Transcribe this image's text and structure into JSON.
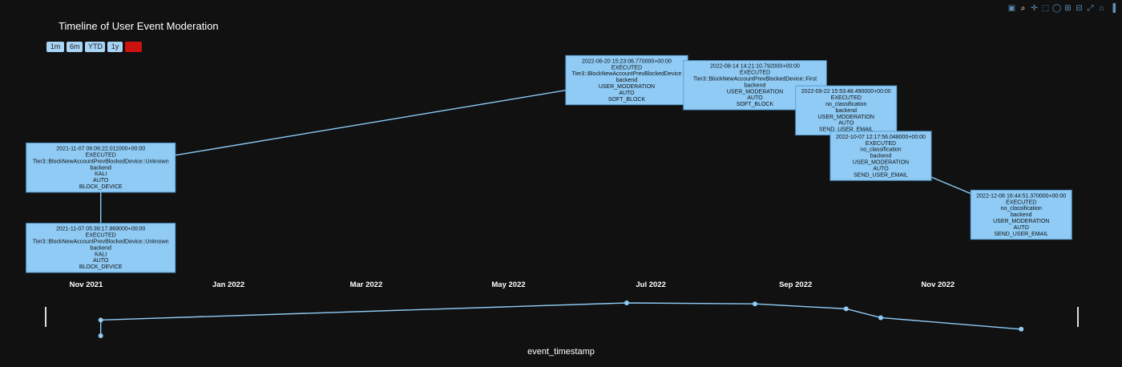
{
  "title": "Timeline of User Event Moderation",
  "range_buttons": [
    {
      "label": "1m",
      "name": "range-button-1m",
      "active": false
    },
    {
      "label": "6m",
      "name": "range-button-6m",
      "active": false
    },
    {
      "label": "YTD",
      "name": "range-button-ytd",
      "active": false
    },
    {
      "label": "1y",
      "name": "range-button-1y",
      "active": false
    },
    {
      "label": "all",
      "name": "range-button-all",
      "active": true
    }
  ],
  "modebar": [
    {
      "name": "camera-icon",
      "glyph": "▣",
      "active": false
    },
    {
      "name": "zoom-icon",
      "glyph": "⌕",
      "active": true
    },
    {
      "name": "pan-icon",
      "glyph": "✛",
      "active": false
    },
    {
      "name": "box-select-icon",
      "glyph": "⬚",
      "active": false
    },
    {
      "name": "lasso-select-icon",
      "glyph": "◯",
      "active": false
    },
    {
      "name": "zoom-in-icon",
      "glyph": "⊞",
      "active": false
    },
    {
      "name": "zoom-out-icon",
      "glyph": "⊟",
      "active": false
    },
    {
      "name": "autoscale-icon",
      "glyph": "⤢",
      "active": false
    },
    {
      "name": "reset-axes-icon",
      "glyph": "⌂",
      "active": false
    },
    {
      "name": "plotly-logo-icon",
      "glyph": "▐",
      "active": false
    }
  ],
  "chart_data": {
    "type": "line",
    "title": "Timeline of User Event Moderation",
    "xlabel": "event_timestamp",
    "ylabel": "",
    "x_ticks": [
      "Nov 2021",
      "Jan 2022",
      "Mar 2022",
      "May 2022",
      "Jul 2022",
      "Sep 2022",
      "Nov 2022"
    ],
    "points": [
      {
        "timestamp": "2021-11-07 05:39:17.869000+00:00",
        "level": 0.0,
        "lines": [
          "2021-11-07 05:39:17.869000+00:00",
          "EXECUTED",
          "Tier3::BlockNewAccountPrevBlockedDevice::Unknown",
          "backend",
          "KALI",
          "AUTO",
          "BLOCK_DEVICE"
        ]
      },
      {
        "timestamp": "2021-11-07 06:06:22.011000+00:00",
        "level": 0.48,
        "lines": [
          "2021-11-07 06:06:22.011000+00:00",
          "EXECUTED",
          "Tier3::BlockNewAccountPrevBlockedDevice::Unknown",
          "backend",
          "KALI",
          "AUTO",
          "BLOCK_DEVICE"
        ]
      },
      {
        "timestamp": "2022-06-20 15:23:06.770000+00:00",
        "level": 1.0,
        "lines": [
          "2022-06-20 15:23:06.770000+00:00",
          "EXECUTED",
          "Tier3::BlockNewAccountPrevBlockedDevice",
          "backend",
          "USER_MODERATION",
          "AUTO",
          "SOFT_BLOCK"
        ]
      },
      {
        "timestamp": "2022-08-14 14:21:10.792000+00:00",
        "level": 0.97,
        "lines": [
          "2022-08-14 14:21:10.792000+00:00",
          "EXECUTED",
          "Tier3::BlockNewAccountPrevBlockedDevice::First",
          "backend",
          "USER_MODERATION",
          "AUTO",
          "SOFT_BLOCK"
        ]
      },
      {
        "timestamp": "2022-09-22 15:53:48.490000+00:00",
        "level": 0.82,
        "lines": [
          "2022-09-22 15:53:48.490000+00:00",
          "EXECUTED",
          "no_classification",
          "backend",
          "USER_MODERATION",
          "AUTO",
          "SEND_USER_EMAIL"
        ]
      },
      {
        "timestamp": "2022-10-07 12:17:56.048000+00:00",
        "level": 0.55,
        "lines": [
          "2022-10-07 12:17:56.048000+00:00",
          "EXECUTED",
          "no_classification",
          "backend",
          "USER_MODERATION",
          "AUTO",
          "SEND_USER_EMAIL"
        ]
      },
      {
        "timestamp": "2022-12-06 16:44:51.370000+00:00",
        "level": 0.2,
        "lines": [
          "2022-12-06 16:44:51.370000+00:00",
          "EXECUTED",
          "no_classification",
          "backend",
          "USER_MODERATION",
          "AUTO",
          "SEND_USER_EMAIL"
        ]
      }
    ],
    "grid": false,
    "range_slider": true
  }
}
